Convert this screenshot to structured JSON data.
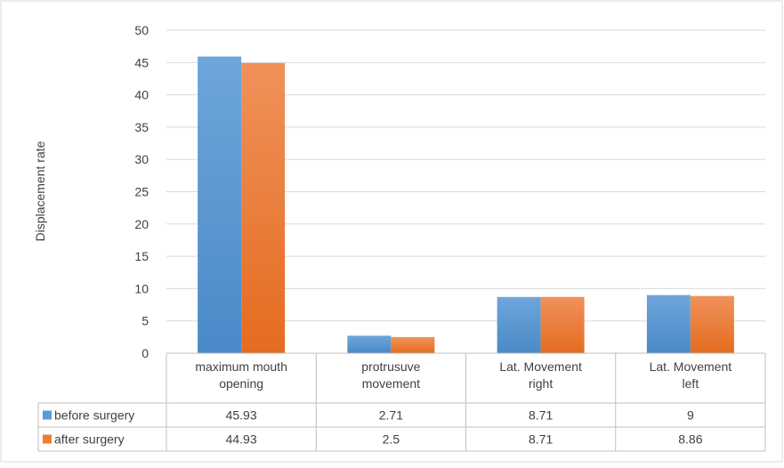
{
  "chart_data": {
    "type": "bar",
    "title": "",
    "ylabel": "Displacement rate",
    "xlabel": "",
    "ylim": [
      0,
      50
    ],
    "yticks": [
      0,
      5,
      10,
      15,
      20,
      25,
      30,
      35,
      40,
      45,
      50
    ],
    "grid": true,
    "legend": "data-table",
    "categories": [
      [
        "maximum mouth",
        "opening"
      ],
      [
        "protrusuve",
        "movement"
      ],
      [
        "Lat. Movement",
        "right"
      ],
      [
        "Lat. Movement",
        "left"
      ]
    ],
    "series": [
      {
        "name": "before surgery",
        "color": "#5b9bd5",
        "values": [
          45.93,
          2.71,
          8.71,
          9
        ],
        "labels": [
          "45.93",
          "2.71",
          "8.71",
          "9"
        ]
      },
      {
        "name": "after surgery",
        "color": "#ed7d31",
        "values": [
          44.93,
          2.5,
          8.71,
          8.86
        ],
        "labels": [
          "44.93",
          "2.5",
          "8.71",
          "8.86"
        ]
      }
    ]
  }
}
